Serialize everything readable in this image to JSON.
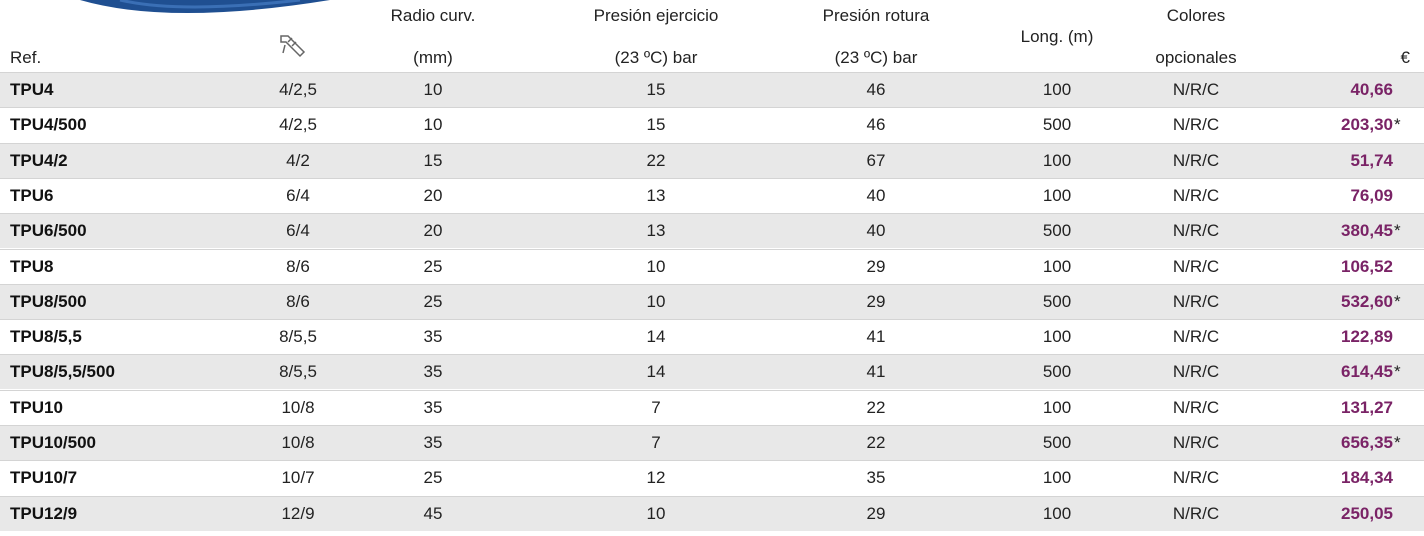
{
  "header": {
    "ref": "Ref.",
    "radio": [
      "Radio curv.",
      "(mm)"
    ],
    "presion_ejercicio": [
      "Presión ejercicio",
      "(23 ºC) bar"
    ],
    "presion_rotura": [
      "Presión rotura",
      "(23 ºC) bar"
    ],
    "longitud": "Long. (m)",
    "colores": [
      "Colores",
      "opcionales"
    ],
    "precio": "€"
  },
  "table": {
    "rows": [
      {
        "ref": "TPU4",
        "diametro": "4/2,5",
        "radio": "10",
        "presion_ejercicio": "15",
        "presion_rotura": "46",
        "longitud": "100",
        "colores": "N/R/C",
        "precio": "40,66"
      },
      {
        "ref": "TPU4/500",
        "diametro": "4/2,5",
        "radio": "10",
        "presion_ejercicio": "15",
        "presion_rotura": "46",
        "longitud": "500",
        "colores": "N/R/C",
        "precio": "203,30",
        "nota": "*"
      },
      {
        "ref": "TPU4/2",
        "diametro": "4/2",
        "radio": "15",
        "presion_ejercicio": "22",
        "presion_rotura": "67",
        "longitud": "100",
        "colores": "N/R/C",
        "precio": "51,74"
      },
      {
        "ref": "TPU6",
        "diametro": "6/4",
        "radio": "20",
        "presion_ejercicio": "13",
        "presion_rotura": "40",
        "longitud": "100",
        "colores": "N/R/C",
        "precio": "76,09"
      },
      {
        "ref": "TPU6/500",
        "diametro": "6/4",
        "radio": "20",
        "presion_ejercicio": "13",
        "presion_rotura": "40",
        "longitud": "500",
        "colores": "N/R/C",
        "precio": "380,45",
        "nota": "*"
      },
      {
        "ref": "TPU8",
        "diametro": "8/6",
        "radio": "25",
        "presion_ejercicio": "10",
        "presion_rotura": "29",
        "longitud": "100",
        "colores": "N/R/C",
        "precio": "106,52"
      },
      {
        "ref": "TPU8/500",
        "diametro": "8/6",
        "radio": "25",
        "presion_ejercicio": "10",
        "presion_rotura": "29",
        "longitud": "500",
        "colores": "N/R/C",
        "precio": "532,60",
        "nota": "*"
      },
      {
        "ref": "TPU8/5,5",
        "diametro": "8/5,5",
        "radio": "35",
        "presion_ejercicio": "14",
        "presion_rotura": "41",
        "longitud": "100",
        "colores": "N/R/C",
        "precio": "122,89"
      },
      {
        "ref": "TPU8/5,5/500",
        "diametro": "8/5,5",
        "radio": "35",
        "presion_ejercicio": "14",
        "presion_rotura": "41",
        "longitud": "500",
        "colores": "N/R/C",
        "precio": "614,45",
        "nota": "*"
      },
      {
        "ref": "TPU10",
        "diametro": "10/8",
        "radio": "35",
        "presion_ejercicio": "7",
        "presion_rotura": "22",
        "longitud": "100",
        "colores": "N/R/C",
        "precio": "131,27"
      },
      {
        "ref": "TPU10/500",
        "diametro": "10/8",
        "radio": "35",
        "presion_ejercicio": "7",
        "presion_rotura": "22",
        "longitud": "500",
        "colores": "N/R/C",
        "precio": "656,35",
        "nota": "*"
      },
      {
        "ref": "TPU10/7",
        "diametro": "10/7",
        "radio": "25",
        "presion_ejercicio": "12",
        "presion_rotura": "35",
        "longitud": "100",
        "colores": "N/R/C",
        "precio": "184,34"
      },
      {
        "ref": "TPU12/9",
        "diametro": "12/9",
        "radio": "45",
        "presion_ejercicio": "10",
        "presion_rotura": "29",
        "longitud": "100",
        "colores": "N/R/C",
        "precio": "250,05"
      }
    ]
  }
}
